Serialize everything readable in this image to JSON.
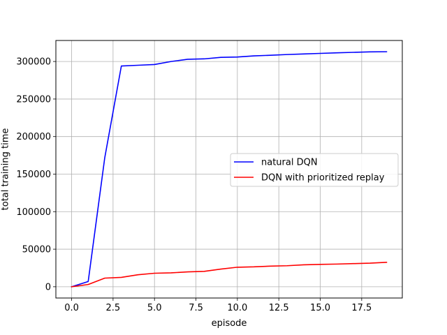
{
  "chart_data": {
    "type": "line",
    "xlabel": "episode",
    "ylabel": "total training time",
    "xlim": [
      -0.95,
      19.95
    ],
    "ylim": [
      -15000,
      328000
    ],
    "grid": true,
    "legend": "center-right",
    "x_ticks": [
      0.0,
      2.5,
      5.0,
      7.5,
      10.0,
      12.5,
      15.0,
      17.5
    ],
    "x_tick_labels": [
      "0.0",
      "2.5",
      "5.0",
      "7.5",
      "10.0",
      "12.5",
      "15.0",
      "17.5"
    ],
    "y_ticks": [
      0,
      50000,
      100000,
      150000,
      200000,
      250000,
      300000
    ],
    "y_tick_labels": [
      "0",
      "50000",
      "100000",
      "150000",
      "200000",
      "250000",
      "300000"
    ],
    "x": [
      0,
      1,
      2,
      3,
      4,
      5,
      6,
      7,
      8,
      9,
      10,
      11,
      12,
      13,
      14,
      15,
      16,
      17,
      18,
      19
    ],
    "series": [
      {
        "name": "natural DQN",
        "color": "#0000ff",
        "values": [
          0,
          7000,
          172000,
          294000,
          295000,
          296000,
          300000,
          303000,
          303500,
          305500,
          306000,
          307500,
          308300,
          309300,
          310000,
          310800,
          311600,
          312200,
          312800,
          313000
        ]
      },
      {
        "name": "DQN with prioritized replay",
        "color": "#ff0000",
        "values": [
          0,
          3000,
          11500,
          12500,
          16000,
          18000,
          18500,
          19800,
          20500,
          23500,
          26000,
          26500,
          27500,
          28000,
          29200,
          29800,
          30200,
          30800,
          31400,
          32500
        ]
      }
    ]
  }
}
